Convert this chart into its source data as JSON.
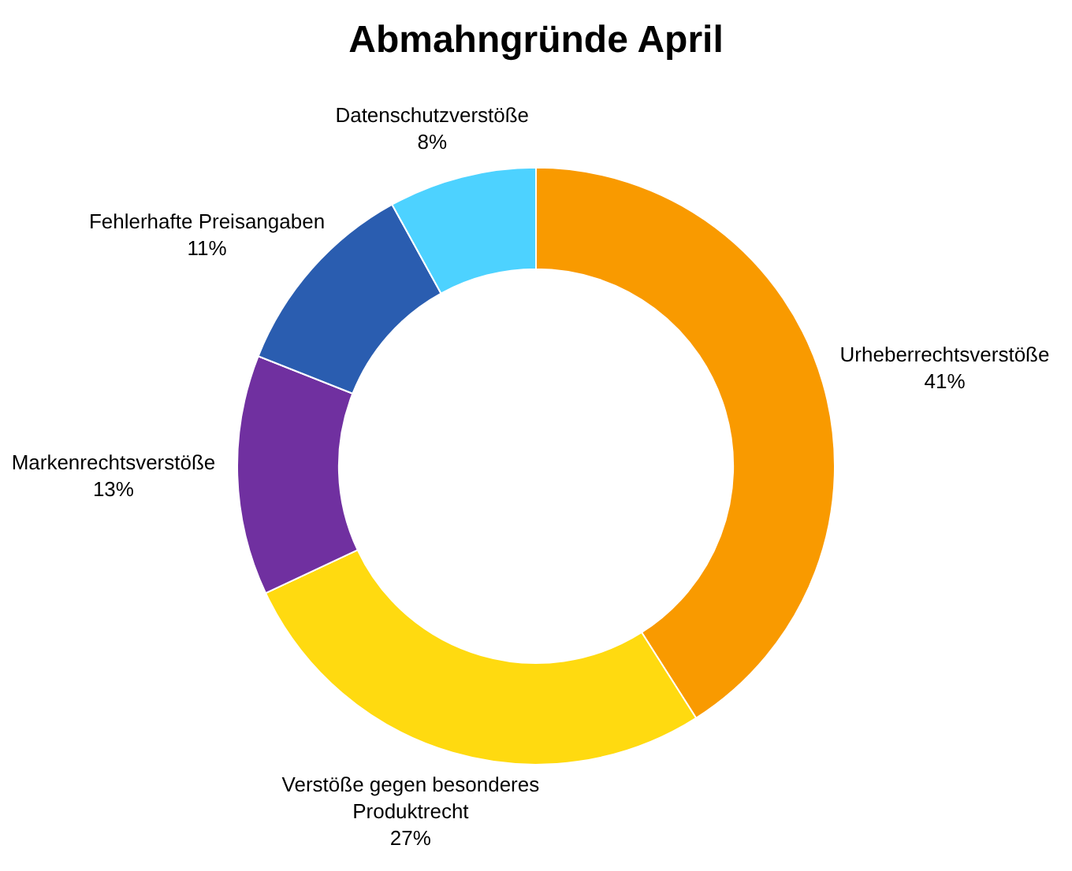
{
  "chart_data": {
    "type": "donut",
    "title": "Abmahngründe April",
    "categories": [
      "Urheberrechtsverstöße",
      "Verstöße gegen besonderes Produktrecht",
      "Markenrechtsverstöße",
      "Fehlerhafte Preisangaben",
      "Datenschutzverstöße"
    ],
    "values": [
      41,
      27,
      13,
      11,
      8
    ],
    "value_labels": [
      "41%",
      "27%",
      "13%",
      "11%",
      "8%"
    ],
    "colors": [
      "#f99a00",
      "#ffda10",
      "#7030a0",
      "#2a5db0",
      "#4dd2ff"
    ],
    "legend": false
  }
}
